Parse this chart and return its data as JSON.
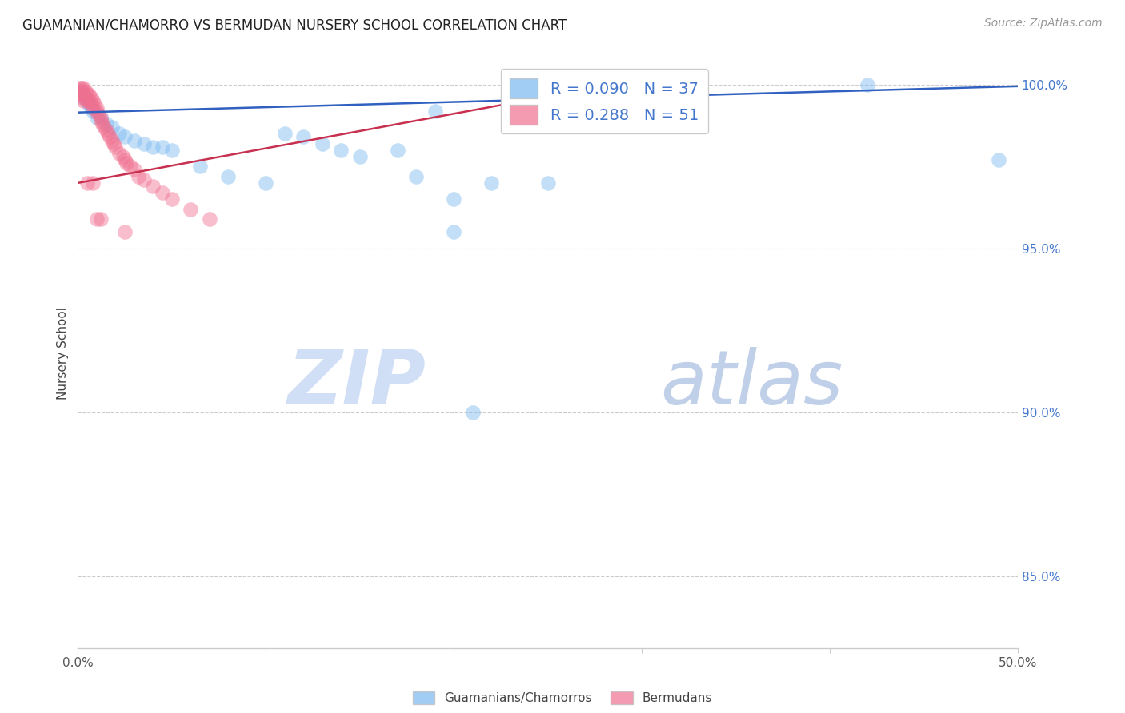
{
  "title": "GUAMANIAN/CHAMORRO VS BERMUDAN NURSERY SCHOOL CORRELATION CHART",
  "source": "Source: ZipAtlas.com",
  "ylabel": "Nursery School",
  "legend_label1": "Guamanians/Chamorros",
  "legend_label2": "Bermudans",
  "r1": 0.09,
  "n1": 37,
  "r2": 0.288,
  "n2": 51,
  "color_blue": "#7ab8f0",
  "color_pink": "#f07090",
  "color_trendline_blue": "#3060c0",
  "color_trendline_pink": "#c83050",
  "watermark_zip_color": "#d0dff5",
  "watermark_atlas_color": "#c0d0e8",
  "blue_trendline_x": [
    0.0,
    0.5
  ],
  "blue_trendline_y": [
    0.9915,
    0.9995
  ],
  "pink_trendline_x": [
    0.0,
    0.27
  ],
  "pink_trendline_y": [
    0.97,
    0.9985
  ],
  "blue_scatter_x": [
    0.001,
    0.002,
    0.003,
    0.004,
    0.005,
    0.006,
    0.007,
    0.008,
    0.01,
    0.012,
    0.015,
    0.018,
    0.022,
    0.025,
    0.03,
    0.035,
    0.04,
    0.045,
    0.05,
    0.065,
    0.08,
    0.1,
    0.11,
    0.12,
    0.13,
    0.14,
    0.15,
    0.17,
    0.19,
    0.2,
    0.22,
    0.25,
    0.2,
    0.21,
    0.42,
    0.49,
    0.18
  ],
  "blue_scatter_y": [
    0.998,
    0.997,
    0.996,
    0.996,
    0.995,
    0.994,
    0.993,
    0.992,
    0.99,
    0.99,
    0.988,
    0.987,
    0.985,
    0.984,
    0.983,
    0.982,
    0.981,
    0.981,
    0.98,
    0.975,
    0.972,
    0.97,
    0.985,
    0.984,
    0.982,
    0.98,
    0.978,
    0.98,
    0.992,
    0.965,
    0.97,
    0.97,
    0.955,
    0.9,
    1.0,
    0.977,
    0.972
  ],
  "pink_scatter_x": [
    0.001,
    0.001,
    0.001,
    0.002,
    0.002,
    0.002,
    0.003,
    0.003,
    0.003,
    0.004,
    0.004,
    0.005,
    0.005,
    0.006,
    0.006,
    0.007,
    0.007,
    0.008,
    0.008,
    0.009,
    0.01,
    0.01,
    0.011,
    0.012,
    0.012,
    0.013,
    0.014,
    0.015,
    0.016,
    0.017,
    0.018,
    0.019,
    0.02,
    0.022,
    0.024,
    0.025,
    0.026,
    0.028,
    0.03,
    0.032,
    0.035,
    0.04,
    0.045,
    0.05,
    0.06,
    0.07,
    0.005,
    0.008,
    0.01,
    0.012,
    0.025
  ],
  "pink_scatter_y": [
    0.999,
    0.998,
    0.997,
    0.999,
    0.998,
    0.996,
    0.999,
    0.997,
    0.995,
    0.998,
    0.996,
    0.997,
    0.995,
    0.997,
    0.995,
    0.996,
    0.994,
    0.995,
    0.993,
    0.994,
    0.993,
    0.992,
    0.991,
    0.99,
    0.989,
    0.988,
    0.987,
    0.986,
    0.985,
    0.984,
    0.983,
    0.982,
    0.981,
    0.979,
    0.978,
    0.977,
    0.976,
    0.975,
    0.974,
    0.972,
    0.971,
    0.969,
    0.967,
    0.965,
    0.962,
    0.959,
    0.97,
    0.97,
    0.959,
    0.959,
    0.955
  ],
  "xlim": [
    0.0,
    0.5
  ],
  "ylim": [
    0.828,
    1.008
  ],
  "yticks": [
    0.85,
    0.9,
    0.95,
    1.0
  ],
  "ytick_labels": [
    "85.0%",
    "90.0%",
    "95.0%",
    "100.0%"
  ],
  "xticks": [
    0.0,
    0.1,
    0.2,
    0.3,
    0.4,
    0.5
  ],
  "xtick_labels_show": {
    "0.0": "0.0%",
    "0.5": "50.0%"
  },
  "grid_color": "#cccccc",
  "spine_color": "#cccccc",
  "title_fontsize": 12,
  "axis_label_fontsize": 11,
  "tick_fontsize": 11,
  "legend_fontsize": 14,
  "right_tick_color": "#4477cc",
  "scatter_size": 180,
  "scatter_alpha": 0.45
}
